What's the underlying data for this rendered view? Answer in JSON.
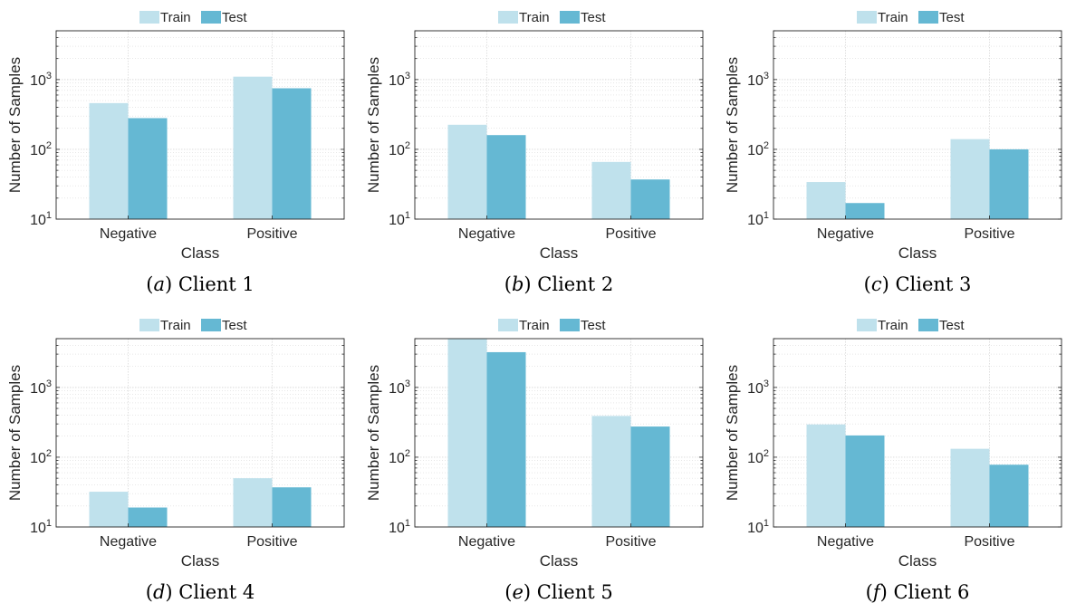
{
  "figure": {
    "colors": {
      "train": "#bfe1ec",
      "test": "#65b8d3",
      "grid": "#d9d9d9",
      "axis": "#262626"
    },
    "y_axis": {
      "scale": "log",
      "ylim": [
        10,
        5000
      ],
      "tick_values": [
        10,
        100,
        1000
      ]
    },
    "grid": "on"
  },
  "chart_data": [
    {
      "type": "bar",
      "caption": {
        "letter": "(a)",
        "text": "Client 1"
      },
      "xlabel": "Class",
      "ylabel": "Number of Samples",
      "categories": [
        "Negative",
        "Positive"
      ],
      "series": [
        {
          "name": "Train",
          "values": [
            460,
            1100
          ]
        },
        {
          "name": "Test",
          "values": [
            280,
            750
          ]
        }
      ],
      "ylim": [
        10,
        5000
      ],
      "yscale": "log",
      "legend": "top-center"
    },
    {
      "type": "bar",
      "caption": {
        "letter": "(b)",
        "text": "Client 2"
      },
      "xlabel": "Class",
      "ylabel": "Number of Samples",
      "categories": [
        "Negative",
        "Positive"
      ],
      "series": [
        {
          "name": "Train",
          "values": [
            225,
            66
          ]
        },
        {
          "name": "Test",
          "values": [
            160,
            37
          ]
        }
      ],
      "ylim": [
        10,
        5000
      ],
      "yscale": "log",
      "legend": "top-center"
    },
    {
      "type": "bar",
      "caption": {
        "letter": "(c)",
        "text": "Client 3"
      },
      "xlabel": "Class",
      "ylabel": "Number of Samples",
      "categories": [
        "Negative",
        "Positive"
      ],
      "series": [
        {
          "name": "Train",
          "values": [
            34,
            140
          ]
        },
        {
          "name": "Test",
          "values": [
            17,
            100
          ]
        }
      ],
      "ylim": [
        10,
        5000
      ],
      "yscale": "log",
      "legend": "top-center"
    },
    {
      "type": "bar",
      "caption": {
        "letter": "(d)",
        "text": "Client 4"
      },
      "xlabel": "Class",
      "ylabel": "Number of Samples",
      "categories": [
        "Negative",
        "Positive"
      ],
      "series": [
        {
          "name": "Train",
          "values": [
            32,
            50
          ]
        },
        {
          "name": "Test",
          "values": [
            19,
            37
          ]
        }
      ],
      "ylim": [
        10,
        5000
      ],
      "yscale": "log",
      "legend": "top-center"
    },
    {
      "type": "bar",
      "caption": {
        "letter": "(e)",
        "text": "Client 5"
      },
      "xlabel": "Class",
      "ylabel": "Number of Samples",
      "categories": [
        "Negative",
        "Positive"
      ],
      "series": [
        {
          "name": "Train",
          "values": [
            5000,
            390
          ]
        },
        {
          "name": "Test",
          "values": [
            3200,
            275
          ]
        }
      ],
      "ylim": [
        10,
        5000
      ],
      "yscale": "log",
      "legend": "top-center"
    },
    {
      "type": "bar",
      "caption": {
        "letter": "(f)",
        "text": "Client 6"
      },
      "xlabel": "Class",
      "ylabel": "Number of Samples",
      "categories": [
        "Negative",
        "Positive"
      ],
      "series": [
        {
          "name": "Train",
          "values": [
            295,
            132
          ]
        },
        {
          "name": "Test",
          "values": [
            205,
            78
          ]
        }
      ],
      "ylim": [
        10,
        5000
      ],
      "yscale": "log",
      "legend": "top-center"
    }
  ]
}
